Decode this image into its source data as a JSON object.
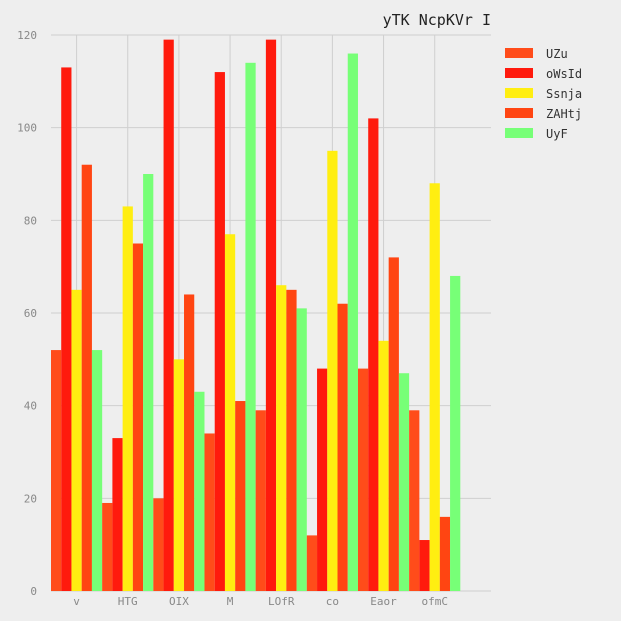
{
  "chart_data": {
    "type": "bar",
    "title": "yTK NcpKVr I",
    "xlabel": "",
    "ylabel": "",
    "ylim": [
      0,
      120
    ],
    "yticks": [
      0,
      20,
      40,
      60,
      80,
      100,
      120
    ],
    "grid": true,
    "legend_position": "top-right",
    "categories": [
      "v",
      "HTG",
      "OIX",
      "M",
      "LOfR",
      "co",
      "Eaor",
      "ofmC"
    ],
    "series": [
      {
        "name": "UZu",
        "color": "#ff4c1a",
        "values": [
          52,
          19,
          20,
          34,
          39,
          12,
          48,
          39
        ]
      },
      {
        "name": "oWsId",
        "color": "#ff1a0d",
        "values": [
          113,
          33,
          119,
          112,
          119,
          48,
          102,
          11
        ]
      },
      {
        "name": "Ssnja",
        "color": "#ffee11",
        "values": [
          65,
          83,
          50,
          77,
          66,
          95,
          54,
          88
        ]
      },
      {
        "name": "ZAHtj",
        "color": "#ff4512",
        "values": [
          92,
          75,
          64,
          41,
          65,
          62,
          72,
          16
        ]
      },
      {
        "name": "UyF",
        "color": "#77ff77",
        "values": [
          52,
          90,
          43,
          114,
          61,
          116,
          47,
          68
        ]
      }
    ]
  }
}
